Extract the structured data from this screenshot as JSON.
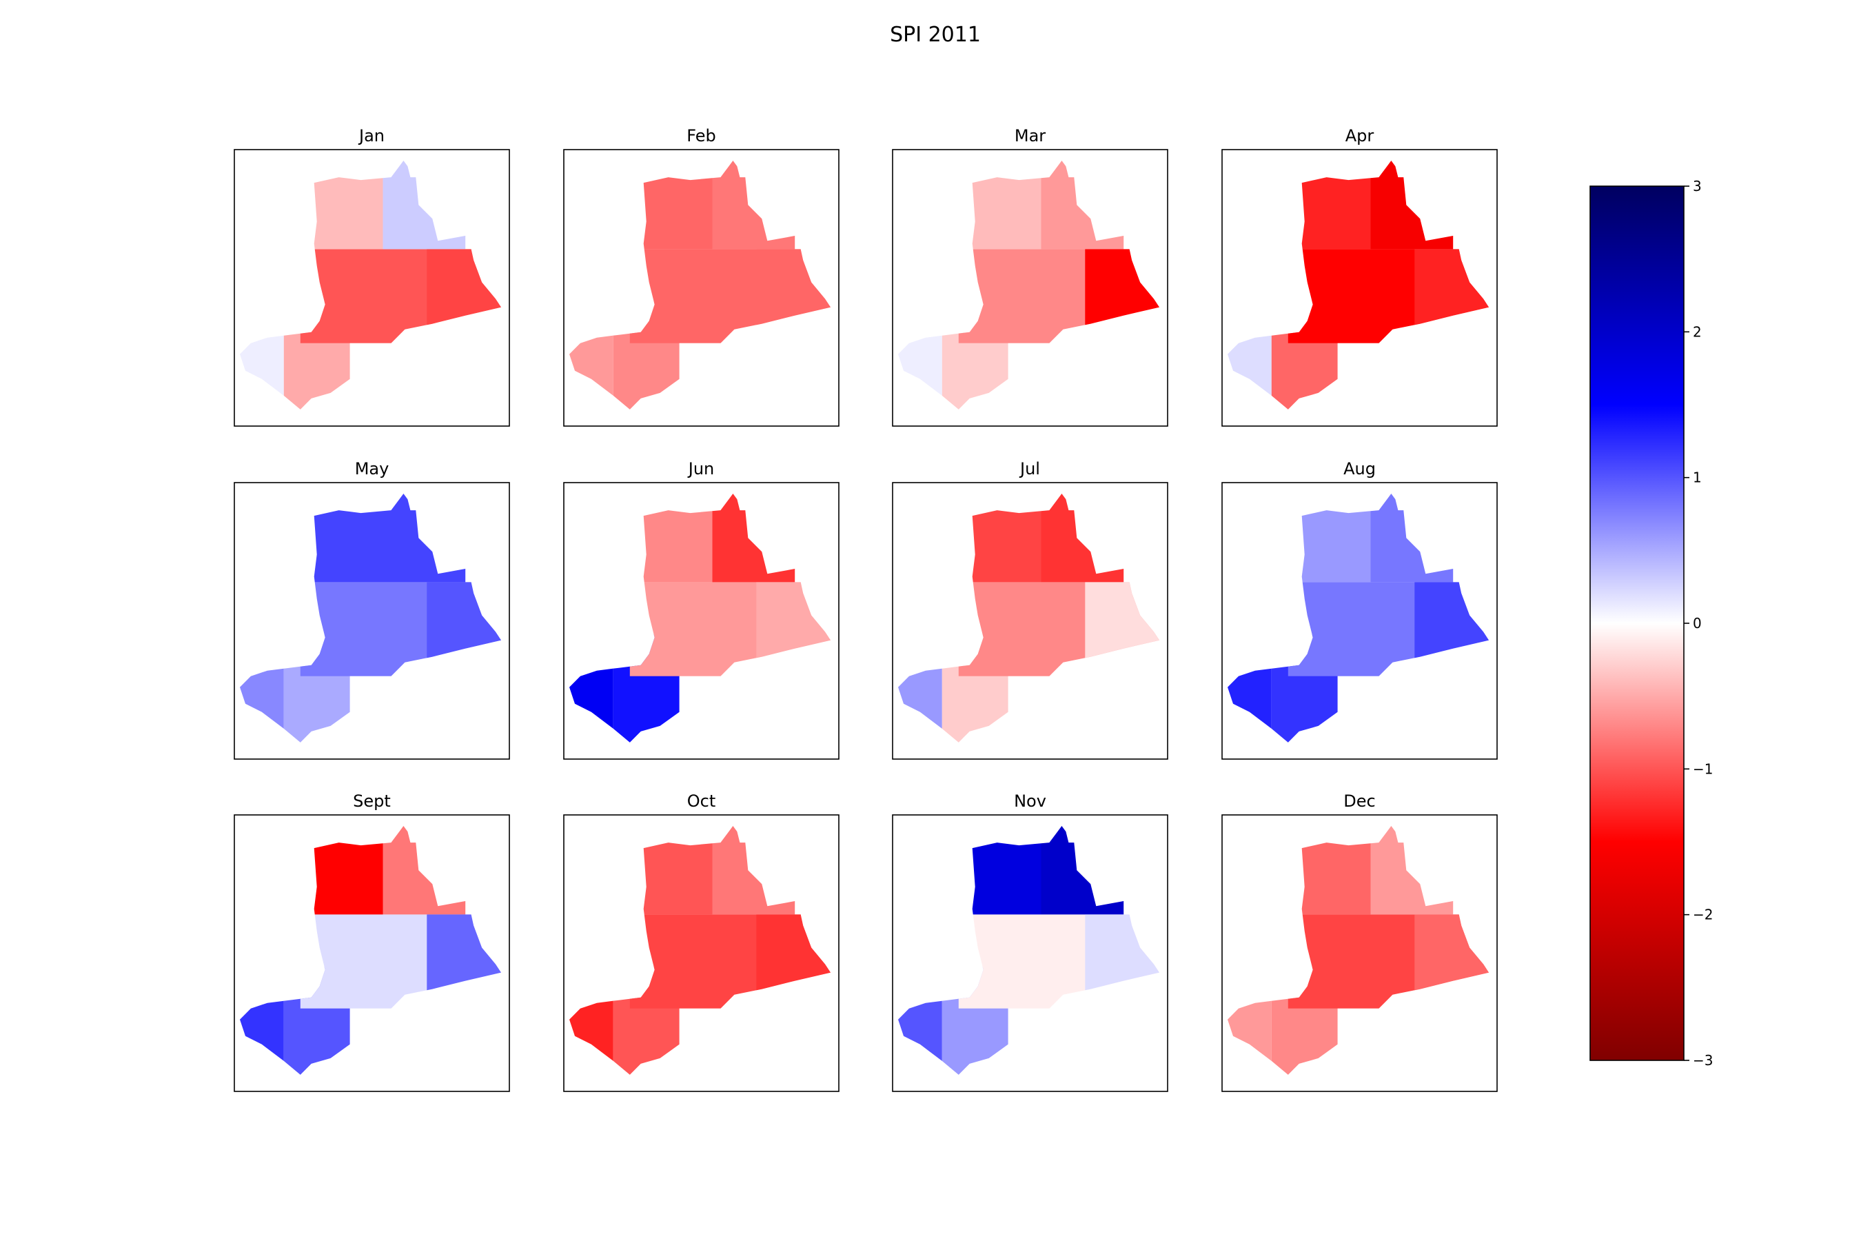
{
  "figure": {
    "title": "SPI 2011"
  },
  "chart_data": {
    "type": "heatmap",
    "title": "SPI 2011",
    "colormap": "seismic_r",
    "colormap_stops": [
      "#800000",
      "#ff0000",
      "#ffffff",
      "#0000ff",
      "#000060"
    ],
    "vmin": -3,
    "vmax": 3,
    "colorbar_ticks": [
      {
        "value": 3,
        "label": "3"
      },
      {
        "value": 2,
        "label": "2"
      },
      {
        "value": 1,
        "label": "1"
      },
      {
        "value": 0,
        "label": "0"
      },
      {
        "value": -1,
        "label": "−1"
      },
      {
        "value": -2,
        "label": "−2"
      },
      {
        "value": -3,
        "label": "−3"
      }
    ],
    "panels": [
      {
        "label": "Jan",
        "regions": {
          "west": 0.1,
          "southwest": -0.5,
          "central": -1.0,
          "north": -0.4,
          "northeast": 0.3,
          "east": -1.1
        }
      },
      {
        "label": "Feb",
        "regions": {
          "west": -0.6,
          "southwest": -0.7,
          "central": -0.9,
          "north": -0.9,
          "northeast": -0.8,
          "east": -0.9
        }
      },
      {
        "label": "Mar",
        "regions": {
          "west": 0.1,
          "southwest": -0.3,
          "central": -0.7,
          "north": -0.4,
          "northeast": -0.6,
          "east": -1.5
        }
      },
      {
        "label": "Apr",
        "regions": {
          "west": 0.2,
          "southwest": -0.9,
          "central": -1.5,
          "north": -1.3,
          "northeast": -1.6,
          "east": -1.3
        }
      },
      {
        "label": "May",
        "regions": {
          "west": 0.7,
          "southwest": 0.5,
          "central": 0.8,
          "north": 1.1,
          "northeast": 1.1,
          "east": 1.0
        }
      },
      {
        "label": "Jun",
        "regions": {
          "west": 1.6,
          "southwest": 1.4,
          "central": -0.6,
          "north": -0.7,
          "northeast": -1.2,
          "east": -0.5
        }
      },
      {
        "label": "Jul",
        "regions": {
          "west": 0.6,
          "southwest": -0.3,
          "central": -0.7,
          "north": -1.1,
          "northeast": -1.2,
          "east": -0.2
        }
      },
      {
        "label": "Aug",
        "regions": {
          "west": 1.3,
          "southwest": 1.2,
          "central": 0.8,
          "north": 0.6,
          "northeast": 0.8,
          "east": 1.1
        }
      },
      {
        "label": "Sept",
        "regions": {
          "west": 1.2,
          "southwest": 1.0,
          "central": 0.2,
          "north": -1.5,
          "northeast": -0.8,
          "east": 0.9
        }
      },
      {
        "label": "Oct",
        "regions": {
          "west": -1.3,
          "southwest": -1.0,
          "central": -1.1,
          "north": -1.0,
          "northeast": -0.8,
          "east": -1.2
        }
      },
      {
        "label": "Nov",
        "regions": {
          "west": 1.0,
          "southwest": 0.6,
          "central": -0.1,
          "north": 1.8,
          "northeast": 2.0,
          "east": 0.2
        }
      },
      {
        "label": "Dec",
        "regions": {
          "west": -0.6,
          "southwest": -0.7,
          "central": -1.1,
          "north": -0.9,
          "northeast": -0.6,
          "east": -0.9
        }
      }
    ]
  }
}
